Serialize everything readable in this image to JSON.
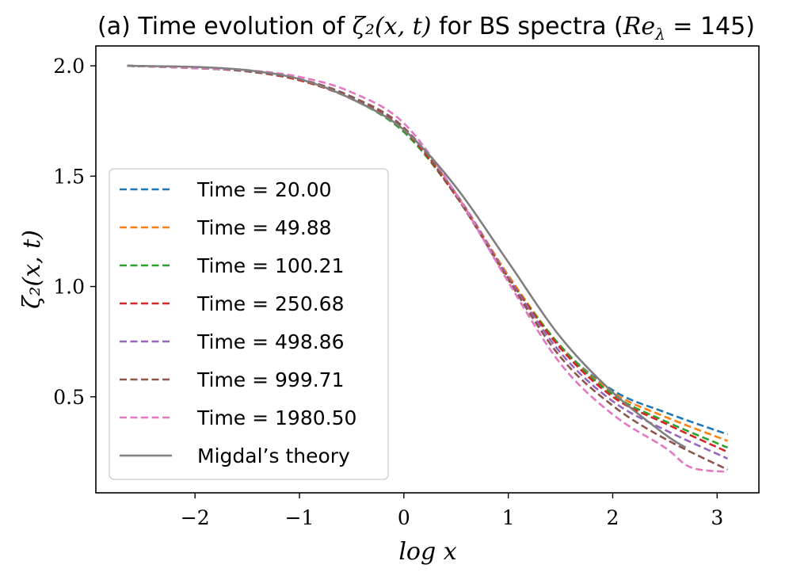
{
  "chart_data": {
    "type": "line",
    "title": "(a) Time evolution of ζ₂(x, t) for BS spectra (Re_λ = 145)",
    "title_parts": {
      "prefix": "(a) Time evolution of ",
      "math1": "ζ₂(x, t)",
      "middle": " for BS spectra (",
      "math2": "Re",
      "math2_sub": "λ",
      "math2_tail": " = 145",
      "suffix": ")"
    },
    "xlabel": "log x",
    "ylabel": "ζ₂(x, t)",
    "xlim": [
      -2.95,
      3.4
    ],
    "ylim": [
      0.065,
      2.09
    ],
    "xticks": [
      -2,
      -1,
      0,
      1,
      2,
      3
    ],
    "xtick_labels": [
      "−2",
      "−1",
      "0",
      "1",
      "2",
      "3"
    ],
    "yticks": [
      0.5,
      1.0,
      1.5,
      2.0
    ],
    "ytick_labels": [
      "0.5",
      "1.0",
      "1.5",
      "2.0"
    ],
    "grid": false,
    "legend_placement": "lower-left",
    "series": [
      {
        "name": "Time = 20.00",
        "color": "#1f77b4",
        "style": "dashed",
        "x": [
          -2.65,
          -2.0,
          -1.5,
          -1.0,
          -0.5,
          0.0,
          0.5,
          1.0,
          1.5,
          2.0,
          2.5,
          3.1
        ],
        "y": [
          2.0,
          1.99,
          1.975,
          1.935,
          1.85,
          1.71,
          1.42,
          1.05,
          0.73,
          0.53,
          0.43,
          0.33
        ]
      },
      {
        "name": "Time = 49.88",
        "color": "#ff7f0e",
        "style": "dashed",
        "x": [
          -2.65,
          -2.0,
          -1.5,
          -1.0,
          -0.5,
          0.0,
          0.5,
          1.0,
          1.5,
          2.0,
          2.5,
          3.1
        ],
        "y": [
          2.0,
          1.99,
          1.975,
          1.935,
          1.85,
          1.71,
          1.42,
          1.05,
          0.73,
          0.52,
          0.41,
          0.3
        ]
      },
      {
        "name": "Time = 100.21",
        "color": "#2ca02c",
        "style": "dashed",
        "x": [
          -2.65,
          -2.0,
          -1.5,
          -1.0,
          -0.5,
          0.0,
          0.5,
          1.0,
          1.5,
          2.0,
          2.5,
          3.1
        ],
        "y": [
          2.0,
          1.99,
          1.975,
          1.935,
          1.85,
          1.7,
          1.41,
          1.04,
          0.73,
          0.51,
          0.39,
          0.27
        ]
      },
      {
        "name": "Time = 250.68",
        "color": "#d62728",
        "style": "dashed",
        "x": [
          -2.65,
          -2.0,
          -1.5,
          -1.0,
          -0.5,
          0.0,
          0.5,
          1.0,
          1.5,
          2.0,
          2.5,
          3.1
        ],
        "y": [
          2.0,
          1.99,
          1.975,
          1.935,
          1.85,
          1.71,
          1.41,
          1.04,
          0.72,
          0.5,
          0.38,
          0.25
        ]
      },
      {
        "name": "Time = 498.86",
        "color": "#9467bd",
        "style": "dashed",
        "x": [
          -2.65,
          -2.0,
          -1.5,
          -1.0,
          -0.5,
          0.0,
          0.5,
          1.0,
          1.5,
          2.0,
          2.5,
          3.1
        ],
        "y": [
          2.0,
          1.99,
          1.975,
          1.94,
          1.86,
          1.72,
          1.42,
          1.04,
          0.7,
          0.48,
          0.35,
          0.22
        ]
      },
      {
        "name": "Time = 999.71",
        "color": "#8c564b",
        "style": "dashed",
        "x": [
          -2.65,
          -2.0,
          -1.5,
          -1.0,
          -0.5,
          0.0,
          0.5,
          1.0,
          1.5,
          2.0,
          2.5,
          3.1
        ],
        "y": [
          2.0,
          1.99,
          1.975,
          1.94,
          1.86,
          1.72,
          1.41,
          1.03,
          0.68,
          0.46,
          0.31,
          0.17
        ]
      },
      {
        "name": "Time = 1980.50",
        "color": "#e377c2",
        "style": "dashed",
        "x": [
          -2.65,
          -2.0,
          -1.5,
          -1.0,
          -0.5,
          0.0,
          0.5,
          1.0,
          1.5,
          2.0,
          2.5,
          2.75,
          3.1
        ],
        "y": [
          2.0,
          1.99,
          1.98,
          1.95,
          1.88,
          1.74,
          1.42,
          1.02,
          0.65,
          0.42,
          0.27,
          0.18,
          0.16
        ]
      },
      {
        "name": "Migdal’s theory",
        "color": "#7f7f7f",
        "style": "solid",
        "x": [
          -2.65,
          -2.0,
          -1.5,
          -1.0,
          -0.5,
          0.0,
          0.5,
          1.0,
          1.5,
          2.0,
          2.5,
          2.7
        ],
        "y": [
          2.0,
          1.995,
          1.98,
          1.94,
          1.85,
          1.71,
          1.45,
          1.11,
          0.77,
          0.52,
          0.33,
          0.27
        ]
      }
    ]
  }
}
